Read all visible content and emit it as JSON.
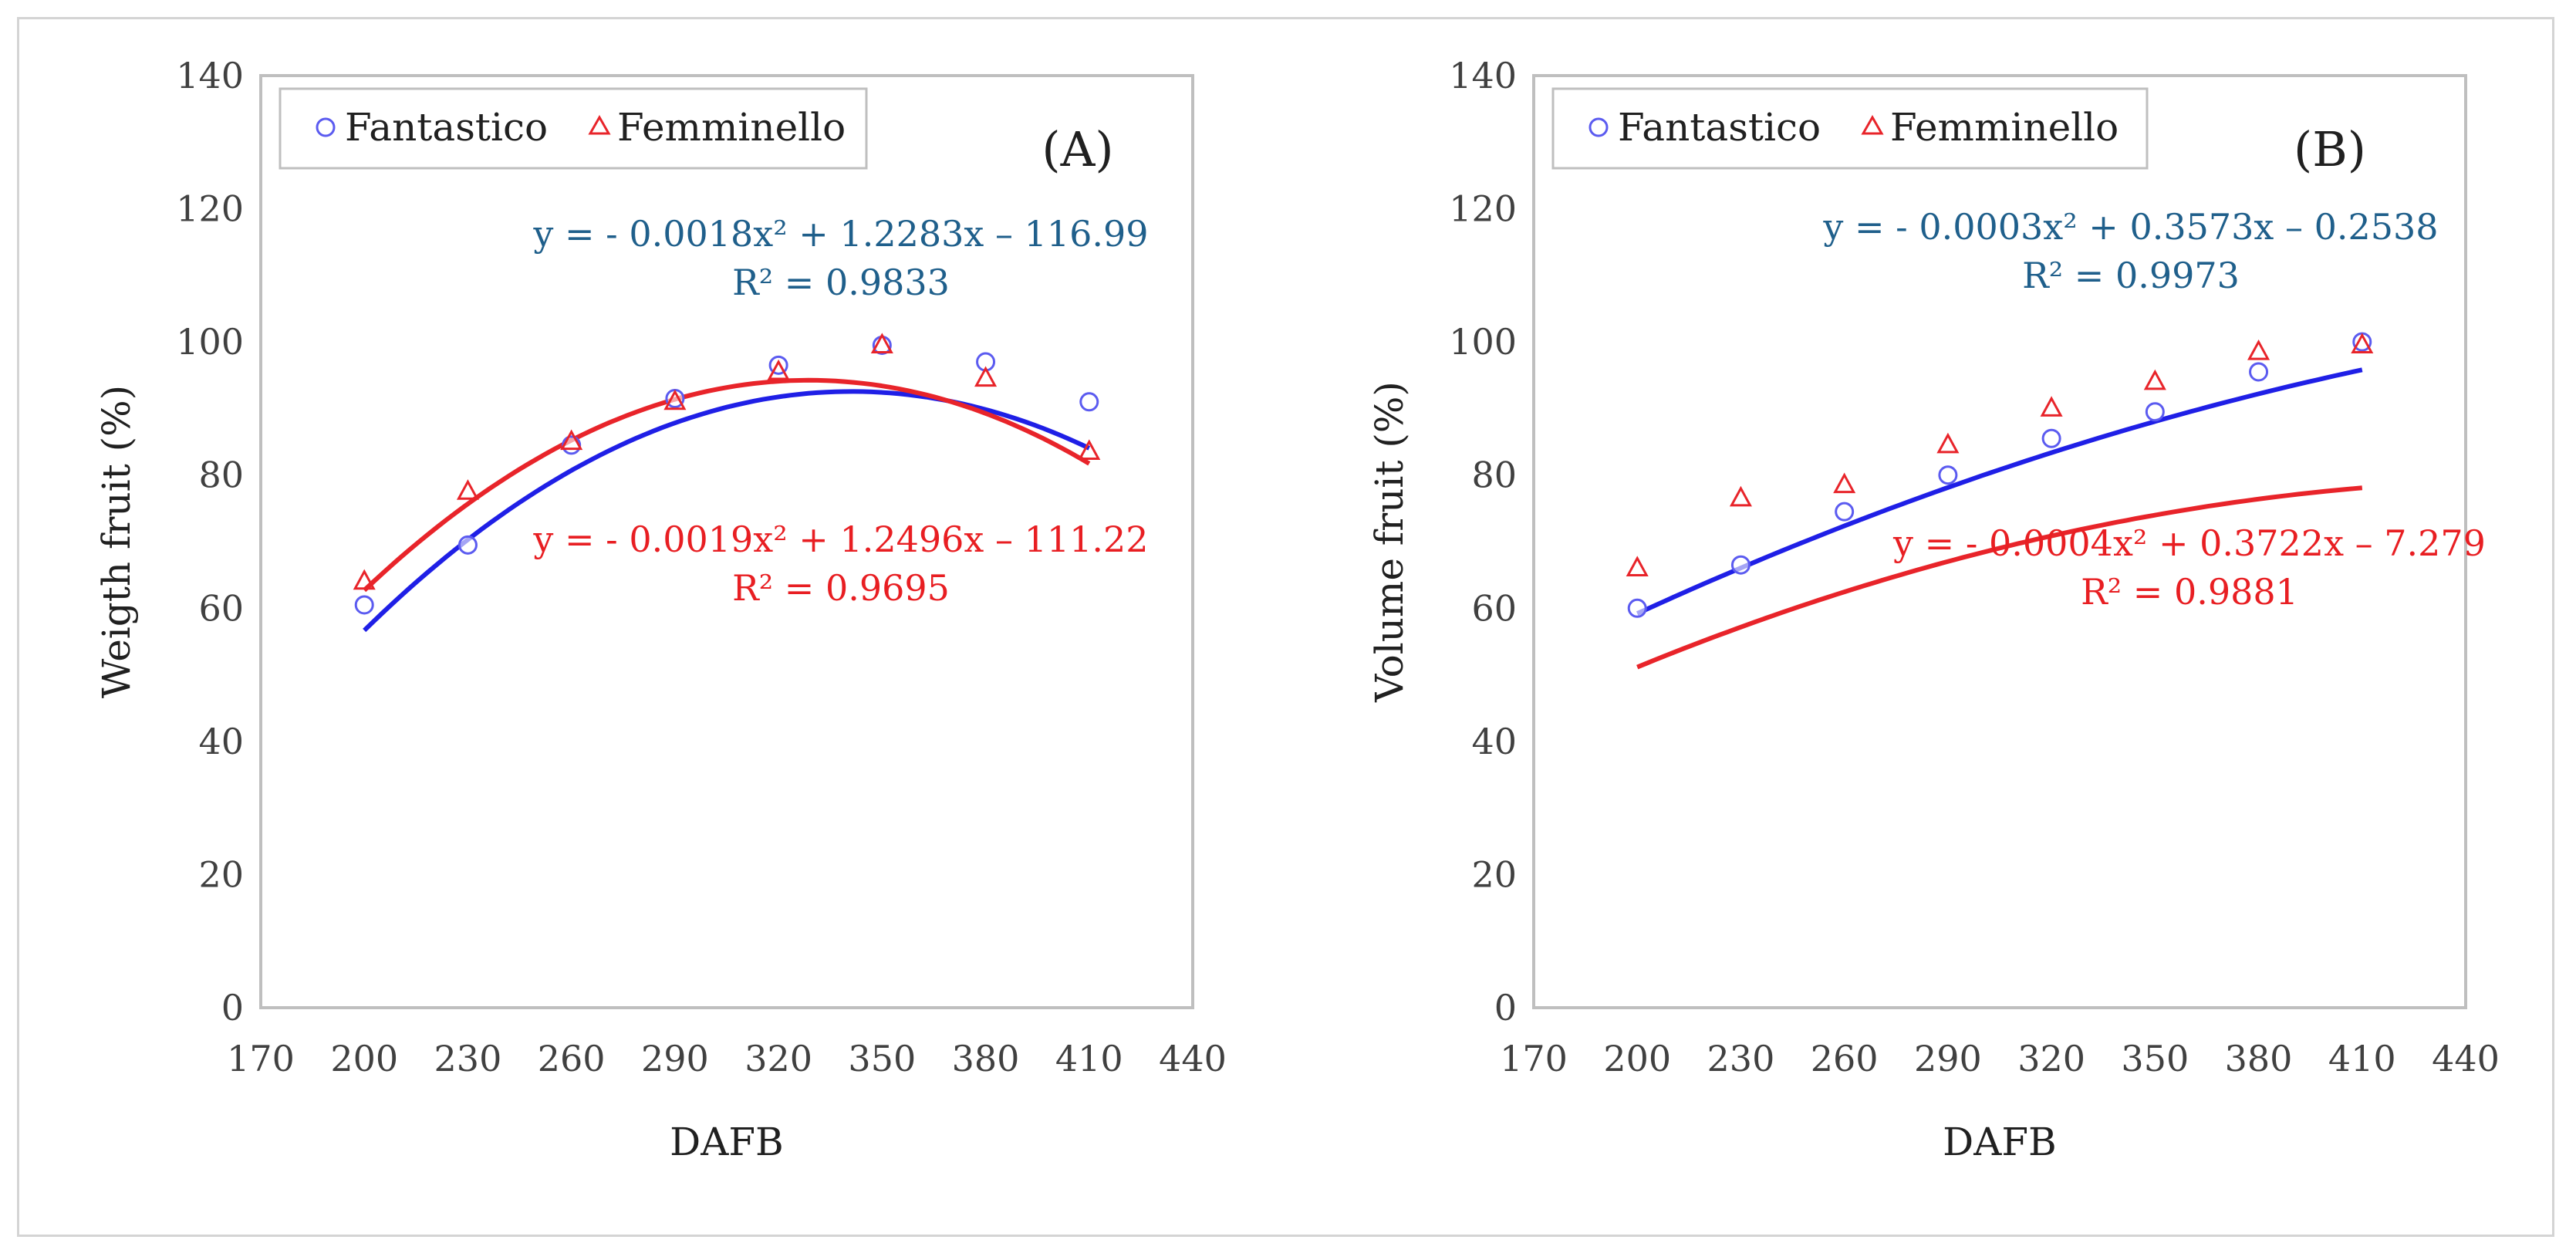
{
  "chart_data": [
    {
      "type": "scatter",
      "panel_label": "(A)",
      "xlabel": "DAFB",
      "ylabel": "Weigth fruit (%)",
      "xlim": [
        170,
        440
      ],
      "ylim": [
        0,
        140
      ],
      "x_ticks": [
        "170",
        "200",
        "230",
        "260",
        "290",
        "320",
        "350",
        "380",
        "410",
        "440"
      ],
      "y_ticks": [
        "0",
        "20",
        "40",
        "60",
        "80",
        "100",
        "120",
        "140"
      ],
      "legend": [
        "Fantastico",
        "Femminello"
      ],
      "series": [
        {
          "name": "Fantastico",
          "marker": "circle",
          "color": "#5b5bf0",
          "trend_color": "#1f1fe6",
          "x": [
            200,
            230,
            260,
            290,
            320,
            350,
            380,
            410
          ],
          "y": [
            60.5,
            69.5,
            84.5,
            91.5,
            96.5,
            99.5,
            97.0,
            91.0
          ],
          "fit": {
            "a": -0.0018,
            "b": 1.2283,
            "c": -116.99
          },
          "equation": "y = - 0.0018x² + 1.2283x – 116.99",
          "r2": "R² = 0.9833",
          "equation_color": "#1f5f8b"
        },
        {
          "name": "Femminello",
          "marker": "triangle",
          "color": "#e8242a",
          "trend_color": "#e8242a",
          "x": [
            200,
            230,
            260,
            290,
            320,
            350,
            380,
            410
          ],
          "y": [
            64.0,
            77.5,
            85.0,
            91.0,
            95.5,
            99.5,
            94.5,
            83.5
          ],
          "fit": {
            "a": -0.0019,
            "b": 1.2496,
            "c": -111.22
          },
          "equation": "y = - 0.0019x² + 1.2496x – 111.22",
          "r2": "R² = 0.9695",
          "equation_color": "#e81e22"
        }
      ]
    },
    {
      "type": "scatter",
      "panel_label": "(B)",
      "xlabel": "DAFB",
      "ylabel": "Volume fruit (%)",
      "xlim": [
        170,
        440
      ],
      "ylim": [
        0,
        140
      ],
      "x_ticks": [
        "170",
        "200",
        "230",
        "260",
        "290",
        "320",
        "350",
        "380",
        "410",
        "440"
      ],
      "y_ticks": [
        "0",
        "20",
        "40",
        "60",
        "80",
        "100",
        "120",
        "140"
      ],
      "legend": [
        "Fantastico",
        "Femminello"
      ],
      "series": [
        {
          "name": "Fantastico",
          "marker": "circle",
          "color": "#5b5bf0",
          "trend_color": "#1f1fe6",
          "x": [
            200,
            230,
            260,
            290,
            320,
            350,
            380,
            410
          ],
          "y": [
            60.0,
            66.5,
            74.5,
            80.0,
            85.5,
            89.5,
            95.5,
            100.0
          ],
          "fit": {
            "a": -0.0003,
            "b": 0.3573,
            "c": -0.2538
          },
          "equation": "y = - 0.0003x² + 0.3573x – 0.2538",
          "r2": "R² = 0.9973",
          "equation_color": "#1f5f8b"
        },
        {
          "name": "Femminello",
          "marker": "triangle",
          "color": "#e8242a",
          "trend_color": "#e8242a",
          "x": [
            200,
            230,
            260,
            290,
            320,
            350,
            380,
            410
          ],
          "y": [
            66.0,
            76.5,
            78.5,
            84.5,
            90.0,
            94.0,
            98.5,
            99.5
          ],
          "fit": {
            "a": -0.0004,
            "b": 0.3722,
            "c": -7.279
          },
          "equation": "y = - 0.0004x² + 0.3722x – 7.279",
          "r2": "R² = 0.9881",
          "equation_color": "#e81e22"
        }
      ]
    }
  ]
}
